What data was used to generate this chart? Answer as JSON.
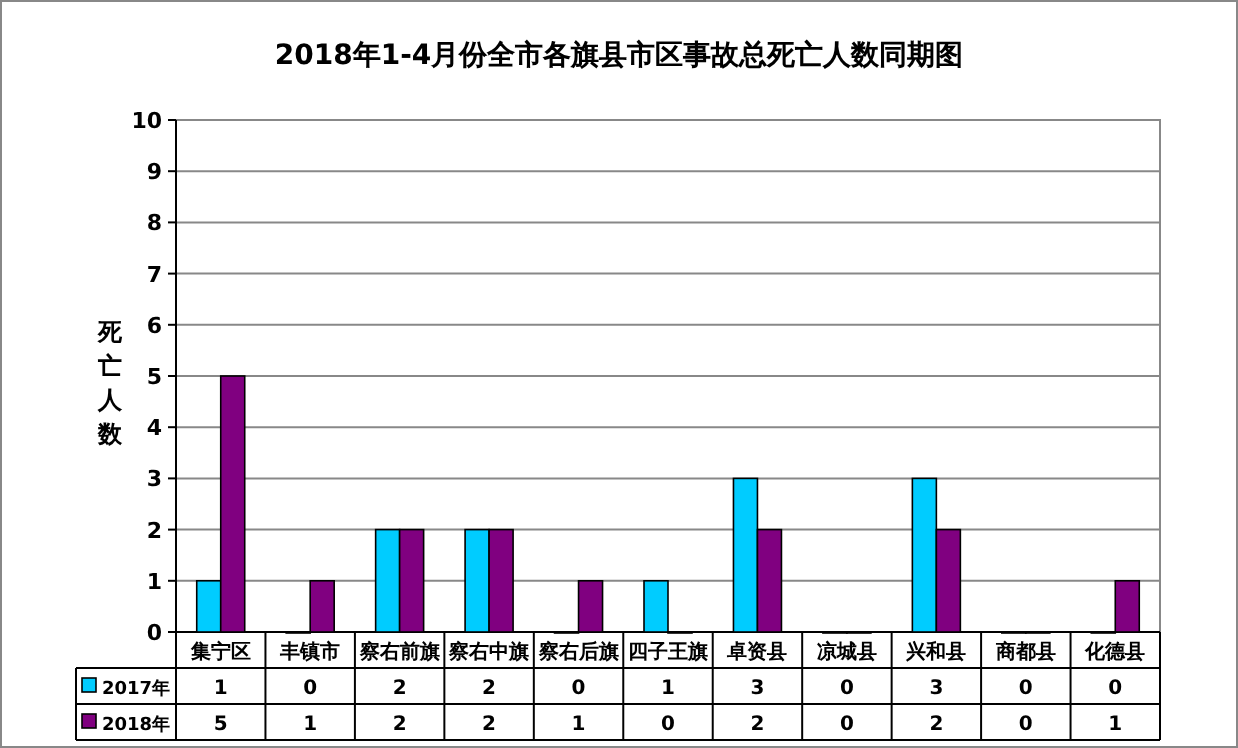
{
  "chart_data": {
    "type": "bar",
    "title": "2018年1-4月份全市各旗县市区事故总死亡人数同期图",
    "ylabel": "死亡人数",
    "categories": [
      "集宁区",
      "丰镇市",
      "察右前旗",
      "察右中旗",
      "察右后旗",
      "四子王旗",
      "卓资县",
      "凉城县",
      "兴和县",
      "商都县",
      "化德县"
    ],
    "series": [
      {
        "name": "2017年",
        "color": "#00ccff",
        "values": [
          1,
          0,
          2,
          2,
          0,
          1,
          3,
          0,
          3,
          0,
          0
        ]
      },
      {
        "name": "2018年",
        "color": "#800080",
        "values": [
          5,
          1,
          2,
          2,
          1,
          0,
          2,
          0,
          2,
          0,
          1
        ]
      }
    ],
    "ylim": [
      0,
      10
    ],
    "yticks": [
      0,
      1,
      2,
      3,
      4,
      5,
      6,
      7,
      8,
      9,
      10
    ],
    "grid": "y",
    "data_labels": true,
    "legend": "bottom"
  }
}
